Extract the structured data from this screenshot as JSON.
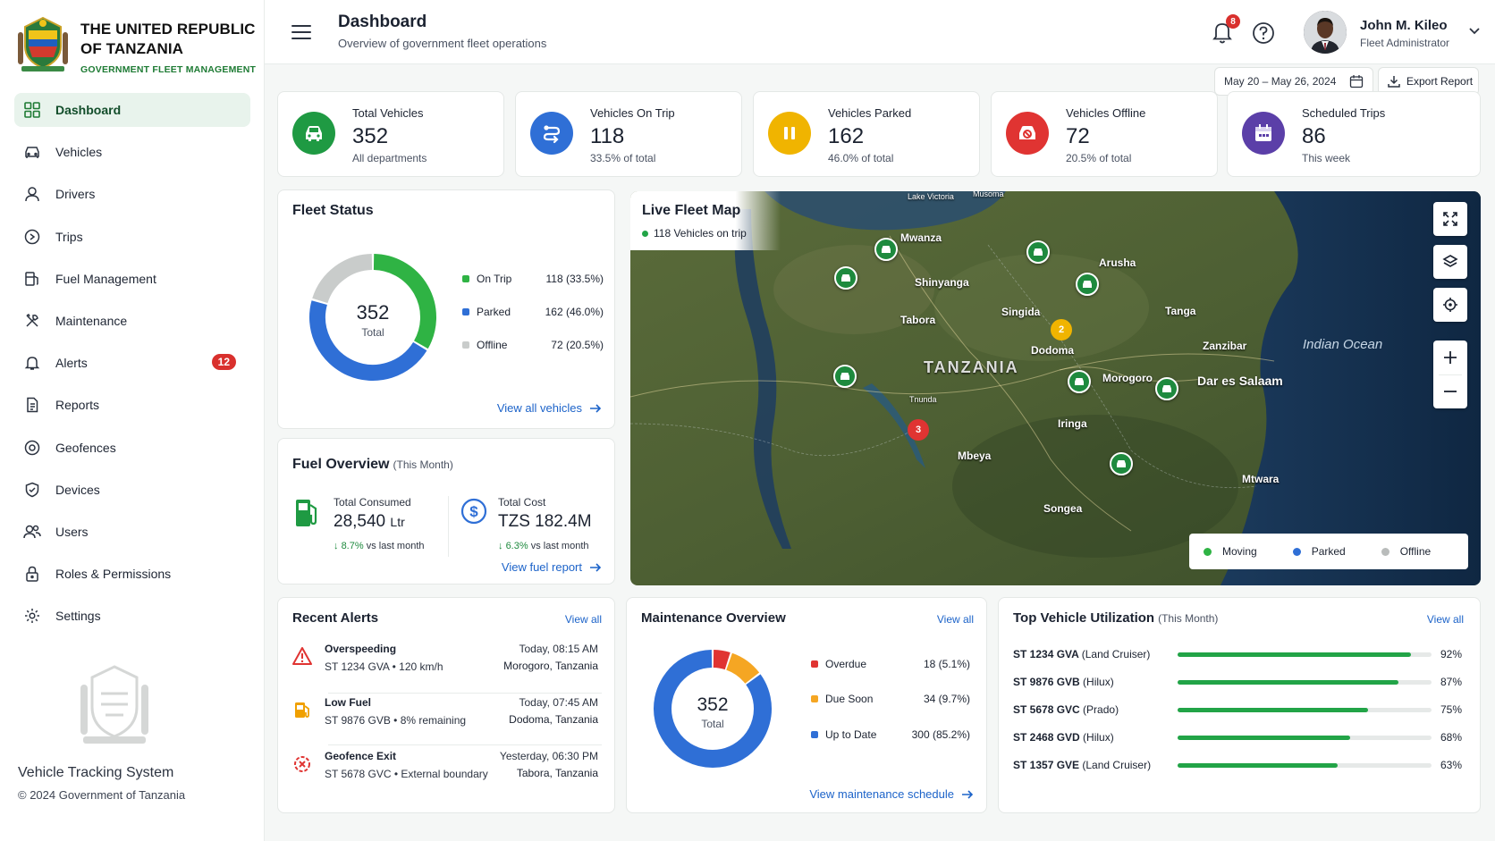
{
  "brand": {
    "title_line1": "THE UNITED REPUBLIC",
    "title_line2": "OF TANZANIA",
    "subtitle": "GOVERNMENT FLEET MANAGEMENT"
  },
  "sidebar": {
    "items": [
      {
        "label": "Dashboard",
        "icon": "grid-icon",
        "active": true
      },
      {
        "label": "Vehicles",
        "icon": "car-icon"
      },
      {
        "label": "Drivers",
        "icon": "driver-icon"
      },
      {
        "label": "Trips",
        "icon": "route-icon"
      },
      {
        "label": "Fuel Management",
        "icon": "fuel-icon"
      },
      {
        "label": "Maintenance",
        "icon": "tools-icon"
      },
      {
        "label": "Alerts",
        "icon": "bell-icon",
        "badge": "12"
      },
      {
        "label": "Reports",
        "icon": "document-icon"
      },
      {
        "label": "Geofences",
        "icon": "geofence-icon"
      },
      {
        "label": "Devices",
        "icon": "device-icon"
      },
      {
        "label": "Users",
        "icon": "users-icon"
      },
      {
        "label": "Roles & Permissions",
        "icon": "lock-icon"
      },
      {
        "label": "Settings",
        "icon": "gear-icon"
      }
    ],
    "system_name": "Vehicle Tracking System",
    "copyright": "© 2024 Government of Tanzania"
  },
  "header": {
    "title": "Dashboard",
    "subtitle": "Overview of government fleet operations",
    "notification_count": "8",
    "user_name": "John M. Kileo",
    "user_role": "Fleet Administrator"
  },
  "toolbar": {
    "date_range": "May 20 – May 26, 2024",
    "export_label": "Export Report"
  },
  "stats": [
    {
      "label": "Total Vehicles",
      "value": "352",
      "sub": "All departments",
      "color": "#1f9a43"
    },
    {
      "label": "Vehicles On Trip",
      "value": "118",
      "sub": "33.5% of total",
      "color": "#2f6fd6"
    },
    {
      "label": "Vehicles Parked",
      "value": "162",
      "sub": "46.0% of total",
      "color": "#f0b400"
    },
    {
      "label": "Vehicles Offline",
      "value": "72",
      "sub": "20.5% of total",
      "color": "#e03432"
    },
    {
      "label": "Scheduled Trips",
      "value": "86",
      "sub": "This week",
      "color": "#5b3fa8"
    }
  ],
  "fleet_status": {
    "title": "Fleet Status",
    "total": "352",
    "total_label": "Total",
    "segments": [
      {
        "label": "On Trip",
        "value": 118,
        "display": "118 (33.5%)",
        "color": "#2fb344"
      },
      {
        "label": "Parked",
        "value": 162,
        "display": "162 (46.0%)",
        "color": "#2f6fd6"
      },
      {
        "label": "Offline",
        "value": 72,
        "display": "72 (20.5%)",
        "color": "#c9cccb"
      }
    ],
    "link": "View all vehicles"
  },
  "fuel": {
    "title": "Fuel Overview",
    "period": "(This Month)",
    "consumed_label": "Total Consumed",
    "consumed_value": "28,540",
    "consumed_unit": "Ltr",
    "consumed_trend_pct": "8.7%",
    "consumed_trend_text": "vs last month",
    "cost_label": "Total Cost",
    "cost_value": "TZS 182.4M",
    "cost_trend_pct": "6.3%",
    "cost_trend_text": "vs last month",
    "link": "View fuel report"
  },
  "map": {
    "title": "Live Fleet Map",
    "subtitle": "118 Vehicles on trip",
    "places": {
      "lake_victoria": "Lake Victoria",
      "musoma": "Musoma",
      "mwanza": "Mwanza",
      "arusha": "Arusha",
      "shinyanga": "Shinyanga",
      "tabora": "Tabora",
      "singida": "Singida",
      "tanga": "Tanga",
      "dodoma": "Dodoma",
      "zanzibar": "Zanzibar",
      "indian_ocean": "Indian Ocean",
      "tanzania": "TANZANIA",
      "morogoro": "Morogoro",
      "dar": "Dar es Salaam",
      "iringa": "Iringa",
      "sumbawanga": "Tnunda",
      "mbeya": "Mbeya",
      "mtwara": "Mtwara",
      "songea": "Songea"
    },
    "clusters": [
      {
        "count": "2",
        "color": "#f0b400"
      },
      {
        "count": "3",
        "color": "#e03432"
      }
    ],
    "legend": [
      {
        "label": "Moving",
        "color": "#2fb344"
      },
      {
        "label": "Parked",
        "color": "#2f6fd6"
      },
      {
        "label": "Offline",
        "color": "#b9bcbb"
      }
    ]
  },
  "alerts": {
    "title": "Recent Alerts",
    "view_all": "View all",
    "items": [
      {
        "type": "Overspeeding",
        "vehicle": "ST 1234 GVA",
        "detail": "120 km/h",
        "time": "Today, 08:15 AM",
        "location": "Morogoro, Tanzania",
        "icon": "warning-icon",
        "color": "#e03432"
      },
      {
        "type": "Low Fuel",
        "vehicle": "ST 9876 GVB",
        "detail": "8% remaining",
        "time": "Today, 07:45 AM",
        "location": "Dodoma, Tanzania",
        "icon": "fuel-icon",
        "color": "#f0a000"
      },
      {
        "type": "Geofence Exit",
        "vehicle": "ST 5678 GVC",
        "detail": "External boundary",
        "time": "Yesterday, 06:30 PM",
        "location": "Tabora, Tanzania",
        "icon": "geofence-exit-icon",
        "color": "#e03432"
      }
    ]
  },
  "maintenance": {
    "title": "Maintenance Overview",
    "view_all": "View all",
    "total": "352",
    "total_label": "Total",
    "segments": [
      {
        "label": "Overdue",
        "value": 18,
        "display": "18 (5.1%)",
        "color": "#e03432"
      },
      {
        "label": "Due Soon",
        "value": 34,
        "display": "34 (9.7%)",
        "color": "#f5a623"
      },
      {
        "label": "Up to Date",
        "value": 300,
        "display": "300 (85.2%)",
        "color": "#2f6fd6"
      }
    ],
    "link": "View maintenance schedule"
  },
  "utilization": {
    "title": "Top Vehicle Utilization",
    "period": "(This Month)",
    "view_all": "View all",
    "items": [
      {
        "plate": "ST 1234 GVA",
        "model": "(Land Cruiser)",
        "pct": 92,
        "display": "92%"
      },
      {
        "plate": "ST 9876 GVB",
        "model": "(Hilux)",
        "pct": 87,
        "display": "87%"
      },
      {
        "plate": "ST 5678 GVC",
        "model": "(Prado)",
        "pct": 75,
        "display": "75%"
      },
      {
        "plate": "ST 2468 GVD",
        "model": "(Hilux)",
        "pct": 68,
        "display": "68%"
      },
      {
        "plate": "ST 1357 GVE",
        "model": "(Land Cruiser)",
        "pct": 63,
        "display": "63%"
      }
    ]
  }
}
